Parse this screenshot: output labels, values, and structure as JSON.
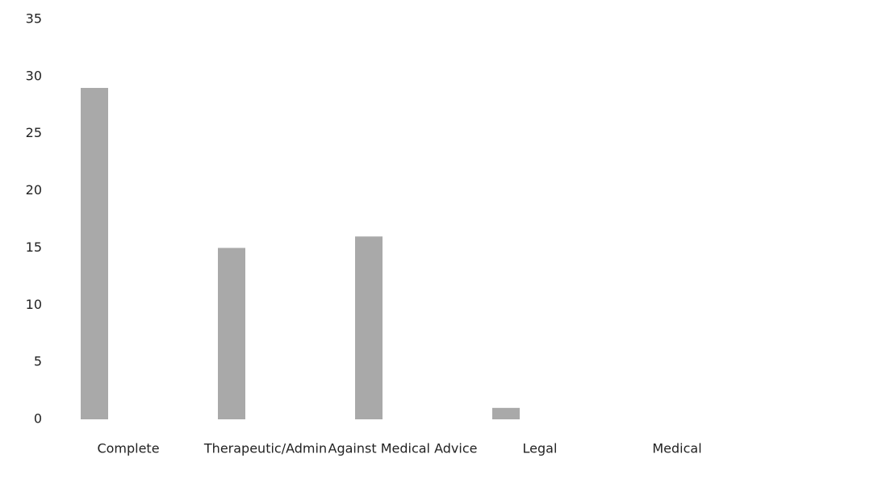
{
  "chart_data": {
    "type": "bar",
    "categories": [
      "Complete",
      "Therapeutic/Admin",
      "Against Medical Advice",
      "Legal",
      "Medical"
    ],
    "values": [
      29,
      15,
      16,
      1,
      0
    ],
    "color": "#a9a9a9",
    "ylim": [
      0,
      35
    ],
    "yticks": [
      0,
      5,
      10,
      15,
      20,
      25,
      30,
      35
    ],
    "grid": false
  }
}
